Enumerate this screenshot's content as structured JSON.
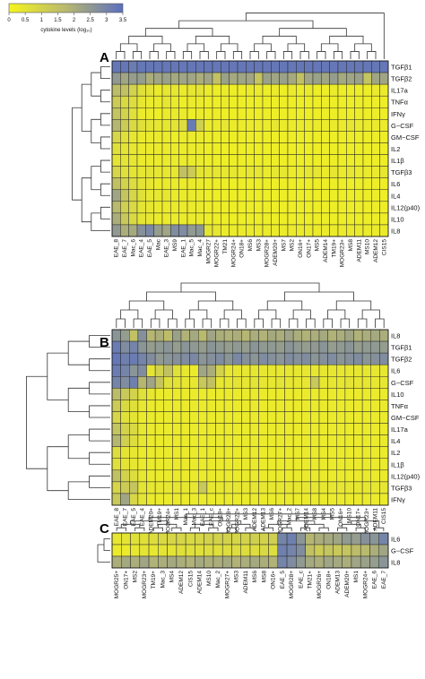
{
  "colorbar": {
    "ticks": [
      "0",
      "0.5",
      "1",
      "1.5",
      "2",
      "2.5",
      "3",
      "3.5"
    ],
    "label": "cytokine levels (log₁₀)",
    "min": 0,
    "max": 3.5,
    "colors": [
      "#f5f51e",
      "#b8b870",
      "#5a6fc0"
    ]
  },
  "chart_data": [
    {
      "type": "heatmap",
      "panel": "A",
      "rows": [
        "TGFβ1",
        "TGFβ2",
        "IL17a",
        "TNFα",
        "IFNγ",
        "G−CSF",
        "GM−CSF",
        "IL2",
        "IL1β",
        "TGFβ3",
        "IL6",
        "IL4",
        "IL12(p40)",
        "IL10",
        "IL8"
      ],
      "columns": [
        "EAE_8",
        "EAE_7",
        "Mac_6",
        "EAE_4",
        "EAE_5",
        "Mac",
        "EAE_3",
        "MS9",
        "EAE_1",
        "Mac_5",
        "Mac_4",
        "MOGR27",
        "MOGR22+",
        "TM21",
        "MOGR24+",
        "ON18+",
        "MS6",
        "MS3",
        "MOGR28+",
        "ADEM20+",
        "MS7",
        "MS2",
        "ON16+",
        "ON17+",
        "MS5",
        "ADEM14",
        "TM19+",
        "MOGR23+",
        "MS8",
        "ADEM11",
        "MS10",
        "ADEM12",
        "CIS15"
      ],
      "values": [
        [
          3.3,
          3.3,
          3.2,
          3.3,
          3.3,
          3.3,
          3.3,
          3.3,
          3.3,
          3.3,
          3.3,
          3.3,
          3.3,
          3.3,
          3.3,
          3.3,
          3.3,
          3.3,
          3.3,
          3.3,
          3.3,
          3.3,
          3.3,
          3.3,
          3.3,
          3.3,
          3.3,
          3.3,
          3.3,
          3.3,
          3.3,
          3.3,
          3.3
        ],
        [
          2.5,
          2.2,
          2.4,
          2.4,
          2.0,
          2.2,
          2.3,
          2.1,
          2.2,
          2.2,
          2.0,
          2.2,
          1.5,
          2.3,
          2.1,
          2.2,
          2.2,
          1.4,
          2.3,
          2.2,
          2.3,
          2.1,
          1.5,
          2.2,
          2.3,
          2.2,
          2.4,
          2.1,
          2.2,
          2.3,
          1.4,
          2.2,
          2.2
        ],
        [
          1.6,
          1.5,
          1.0,
          0.6,
          0.5,
          0.3,
          0.4,
          0.4,
          0.3,
          0.4,
          0.5,
          0.3,
          0.2,
          0.3,
          0.2,
          0.2,
          0.3,
          0.3,
          0.2,
          0.3,
          0.2,
          0.3,
          0.2,
          0.3,
          0.2,
          0.2,
          0.3,
          0.2,
          0.2,
          0.2,
          0.2,
          0.3,
          0.3
        ],
        [
          1.2,
          0.8,
          0.7,
          0.4,
          0.3,
          0.3,
          0.4,
          0.3,
          0.2,
          0.3,
          0.3,
          0.2,
          0.2,
          0.3,
          0.2,
          0.2,
          0.2,
          0.2,
          0.2,
          0.2,
          0.2,
          0.2,
          0.2,
          0.2,
          0.2,
          0.2,
          0.2,
          0.2,
          0.2,
          0.2,
          0.2,
          0.2,
          0.2
        ],
        [
          1.4,
          1.0,
          0.6,
          0.3,
          0.3,
          0.2,
          0.3,
          0.3,
          0.3,
          0.2,
          0.3,
          0.2,
          0.2,
          0.2,
          0.2,
          0.2,
          0.2,
          0.2,
          0.2,
          0.2,
          0.2,
          0.2,
          0.2,
          0.2,
          0.2,
          0.2,
          0.2,
          0.2,
          0.2,
          0.2,
          0.2,
          0.2,
          0.2
        ],
        [
          1.8,
          1.2,
          0.8,
          0.6,
          0.5,
          0.4,
          0.4,
          0.5,
          0.7,
          3.2,
          1.1,
          0.3,
          0.3,
          0.4,
          0.3,
          0.3,
          0.3,
          0.3,
          0.3,
          0.4,
          0.3,
          0.3,
          0.3,
          0.3,
          0.3,
          0.3,
          0.3,
          0.3,
          0.4,
          0.3,
          0.3,
          0.3,
          0.3
        ],
        [
          0.9,
          0.6,
          0.4,
          0.3,
          0.3,
          0.3,
          0.3,
          0.2,
          0.3,
          0.3,
          0.3,
          0.2,
          0.2,
          0.2,
          0.2,
          0.2,
          0.2,
          0.2,
          0.2,
          0.2,
          0.2,
          0.2,
          0.2,
          0.2,
          0.2,
          0.2,
          0.2,
          0.2,
          0.2,
          0.2,
          0.2,
          0.2,
          0.2
        ],
        [
          0.6,
          0.5,
          0.4,
          0.3,
          0.3,
          0.3,
          0.3,
          0.3,
          0.3,
          0.3,
          0.3,
          0.2,
          0.2,
          0.2,
          0.2,
          0.2,
          0.2,
          0.2,
          0.2,
          0.2,
          0.2,
          0.2,
          0.2,
          0.2,
          0.2,
          0.2,
          0.2,
          0.2,
          0.2,
          0.2,
          0.2,
          0.2,
          0.2
        ],
        [
          0.5,
          0.5,
          0.4,
          0.3,
          0.3,
          0.3,
          0.3,
          0.3,
          0.3,
          0.3,
          0.3,
          0.2,
          0.2,
          0.2,
          0.2,
          0.2,
          0.2,
          0.2,
          0.2,
          0.2,
          0.2,
          0.2,
          0.2,
          0.2,
          0.2,
          0.2,
          0.2,
          0.2,
          0.2,
          0.2,
          0.2,
          0.2,
          0.2
        ],
        [
          0.9,
          0.6,
          0.5,
          0.4,
          0.5,
          0.4,
          0.4,
          0.4,
          1.5,
          1.2,
          0.5,
          0.4,
          0.4,
          0.4,
          0.4,
          0.3,
          0.4,
          0.4,
          0.3,
          0.4,
          0.4,
          0.3,
          0.3,
          0.4,
          0.4,
          0.3,
          0.4,
          0.3,
          0.4,
          0.3,
          0.3,
          0.3,
          0.4
        ],
        [
          1.5,
          1.0,
          0.7,
          0.5,
          0.4,
          0.3,
          0.3,
          0.3,
          0.3,
          0.3,
          0.3,
          0.2,
          0.2,
          0.2,
          0.2,
          0.2,
          0.2,
          0.2,
          0.2,
          0.2,
          0.2,
          0.2,
          0.2,
          0.2,
          0.2,
          0.2,
          0.2,
          0.2,
          0.2,
          0.2,
          0.2,
          0.2,
          0.2
        ],
        [
          2.2,
          1.4,
          0.9,
          0.6,
          0.4,
          0.4,
          0.4,
          0.3,
          0.3,
          0.3,
          0.3,
          0.2,
          0.2,
          0.2,
          0.2,
          0.2,
          0.2,
          0.2,
          0.2,
          0.2,
          0.2,
          0.2,
          0.2,
          0.2,
          0.2,
          0.2,
          0.2,
          0.2,
          0.2,
          0.2,
          0.2,
          0.2,
          0.2
        ],
        [
          1.7,
          1.1,
          0.8,
          0.5,
          0.4,
          0.3,
          0.3,
          0.3,
          0.3,
          0.3,
          0.3,
          0.2,
          0.2,
          0.2,
          0.2,
          0.2,
          0.2,
          0.2,
          0.2,
          0.2,
          0.2,
          0.2,
          0.2,
          0.2,
          0.2,
          0.2,
          0.2,
          0.2,
          0.2,
          0.2,
          0.2,
          0.2,
          0.2
        ],
        [
          2.0,
          1.3,
          0.8,
          0.5,
          0.4,
          0.3,
          0.3,
          0.3,
          0.3,
          0.3,
          0.3,
          0.2,
          0.2,
          0.2,
          0.2,
          0.2,
          0.2,
          0.2,
          0.2,
          0.2,
          0.2,
          0.2,
          0.2,
          0.2,
          0.2,
          0.2,
          0.2,
          0.2,
          0.2,
          0.2,
          0.2,
          0.2,
          0.2
        ],
        [
          2.5,
          2.0,
          2.1,
          2.7,
          2.9,
          2.4,
          2.2,
          2.8,
          2.8,
          2.5,
          2.6,
          0.5,
          0.4,
          0.3,
          0.3,
          0.3,
          0.3,
          0.3,
          0.3,
          0.3,
          0.3,
          0.3,
          0.3,
          0.3,
          0.3,
          0.3,
          0.3,
          0.3,
          0.3,
          0.3,
          0.3,
          0.3,
          0.3
        ]
      ]
    },
    {
      "type": "heatmap",
      "panel": "B",
      "rows": [
        "IL8",
        "TGFβ1",
        "TGFβ2",
        "IL6",
        "G−CSF",
        "IL10",
        "TNFα",
        "GM−CSF",
        "IL17a",
        "IL4",
        "IL2",
        "IL1β",
        "IL12(p40)",
        "TGFβ3",
        "IFNγ"
      ],
      "columns": [
        "EAE_8",
        "EAE_7",
        "EAE_5",
        "EAE_4",
        "ADEM20+",
        "TM19+",
        "MOGR24+",
        "MS1",
        "Mac_1",
        "Mac_3",
        "EAE_1",
        "EAE_c",
        "ON18+",
        "MOGR28+",
        "MOGR22+",
        "MS3",
        "ADEM12",
        "ADEM13",
        "MS6",
        "MOGR27+",
        "Mac_2",
        "MS7",
        "ADEM14",
        "MS8",
        "MS4",
        "MS5",
        "ON16+",
        "MS10",
        "ON17+",
        "MOGR23+",
        "ADEM11",
        "CIS15"
      ],
      "values": [
        [
          2.6,
          2.4,
          1.5,
          2.7,
          1.8,
          2.0,
          1.6,
          2.3,
          1.9,
          2.1,
          1.7,
          2.2,
          2.0,
          1.9,
          2.0,
          1.8,
          2.0,
          1.9,
          2.1,
          2.0,
          2.2,
          2.0,
          1.9,
          2.0,
          2.1,
          1.9,
          2.0,
          2.2,
          1.9,
          2.0,
          2.1,
          2.0
        ],
        [
          3.2,
          2.8,
          3.0,
          2.6,
          2.4,
          2.5,
          2.6,
          2.4,
          2.6,
          2.5,
          2.4,
          2.6,
          2.5,
          2.4,
          2.5,
          2.4,
          2.6,
          2.5,
          2.5,
          2.4,
          2.6,
          2.5,
          2.4,
          2.5,
          2.6,
          2.4,
          2.5,
          2.6,
          2.4,
          2.5,
          2.5,
          2.4
        ],
        [
          3.3,
          3.1,
          3.2,
          3.0,
          2.8,
          2.5,
          2.6,
          2.7,
          2.8,
          2.9,
          2.6,
          2.7,
          2.8,
          2.6,
          2.9,
          2.7,
          2.6,
          2.8,
          2.7,
          2.6,
          2.8,
          2.7,
          2.8,
          2.6,
          2.7,
          2.8,
          2.6,
          2.7,
          2.8,
          2.6,
          2.7,
          2.8
        ],
        [
          3.2,
          3.0,
          2.6,
          2.8,
          0.5,
          1.0,
          1.5,
          0.6,
          0.4,
          0.3,
          2.2,
          2.0,
          1.0,
          0.4,
          0.4,
          0.4,
          0.4,
          0.4,
          0.4,
          0.4,
          0.4,
          0.4,
          0.4,
          0.4,
          0.4,
          0.4,
          0.4,
          0.4,
          0.4,
          0.4,
          0.4,
          0.4
        ],
        [
          3.0,
          2.8,
          3.1,
          1.8,
          2.2,
          1.4,
          0.6,
          0.5,
          0.4,
          0.4,
          1.3,
          1.5,
          0.4,
          0.4,
          0.5,
          0.4,
          0.5,
          0.4,
          0.4,
          0.5,
          0.4,
          0.4,
          0.4,
          1.3,
          0.4,
          0.4,
          0.4,
          0.5,
          0.4,
          0.4,
          0.4,
          0.4
        ],
        [
          1.6,
          1.3,
          1.0,
          0.6,
          0.4,
          0.3,
          0.3,
          0.3,
          0.3,
          0.3,
          0.3,
          0.3,
          0.3,
          0.3,
          0.3,
          0.3,
          0.3,
          0.3,
          0.3,
          0.3,
          0.3,
          0.3,
          0.3,
          0.3,
          0.3,
          0.3,
          0.3,
          0.3,
          0.3,
          0.3,
          0.3,
          0.3
        ],
        [
          1.2,
          0.8,
          0.6,
          0.4,
          0.3,
          0.3,
          0.3,
          0.3,
          0.3,
          0.3,
          0.3,
          0.3,
          0.3,
          0.3,
          0.3,
          0.3,
          0.3,
          0.3,
          0.3,
          0.3,
          0.3,
          0.3,
          0.3,
          0.3,
          0.3,
          0.3,
          0.3,
          0.3,
          0.3,
          0.3,
          0.3,
          0.3
        ],
        [
          0.9,
          0.6,
          0.5,
          0.3,
          0.3,
          0.3,
          0.3,
          0.3,
          0.3,
          0.3,
          0.3,
          0.3,
          0.3,
          0.3,
          0.3,
          0.3,
          0.3,
          0.3,
          0.3,
          0.3,
          0.3,
          0.3,
          0.3,
          0.3,
          0.3,
          0.3,
          0.3,
          0.3,
          0.3,
          0.3,
          0.3,
          0.3
        ],
        [
          1.4,
          1.0,
          0.8,
          0.4,
          0.3,
          0.3,
          0.3,
          0.3,
          0.3,
          0.3,
          0.3,
          0.3,
          0.3,
          0.3,
          0.3,
          0.3,
          0.3,
          0.3,
          0.3,
          0.3,
          0.3,
          0.3,
          0.3,
          0.3,
          0.3,
          0.3,
          0.3,
          0.3,
          0.3,
          0.3,
          0.3,
          0.3
        ],
        [
          1.8,
          1.1,
          0.7,
          0.4,
          0.3,
          0.3,
          0.3,
          0.3,
          0.3,
          0.3,
          0.3,
          0.3,
          0.3,
          0.3,
          0.3,
          0.3,
          0.3,
          0.3,
          0.3,
          0.3,
          0.3,
          0.3,
          0.3,
          0.3,
          0.3,
          0.3,
          0.3,
          0.3,
          0.3,
          0.3,
          0.3,
          0.3
        ],
        [
          0.7,
          0.5,
          0.4,
          0.3,
          0.3,
          0.3,
          0.3,
          0.3,
          0.3,
          0.3,
          0.3,
          0.3,
          0.3,
          0.3,
          0.3,
          0.3,
          0.3,
          0.3,
          0.3,
          0.3,
          0.3,
          0.3,
          0.3,
          0.3,
          0.3,
          0.3,
          0.3,
          0.3,
          0.3,
          0.3,
          0.3,
          0.3
        ],
        [
          0.6,
          0.5,
          0.4,
          0.3,
          0.3,
          0.3,
          0.3,
          0.3,
          0.3,
          0.3,
          0.3,
          0.3,
          0.3,
          0.3,
          0.3,
          0.3,
          0.3,
          0.3,
          0.3,
          0.3,
          0.3,
          0.3,
          0.3,
          0.3,
          0.3,
          0.3,
          0.3,
          0.3,
          0.3,
          0.3,
          0.3,
          0.3
        ],
        [
          1.5,
          1.0,
          0.7,
          0.4,
          0.3,
          0.3,
          0.3,
          0.3,
          0.3,
          0.3,
          0.3,
          0.3,
          0.3,
          0.3,
          0.3,
          0.3,
          0.3,
          0.3,
          0.3,
          0.3,
          0.3,
          0.3,
          0.3,
          0.3,
          0.3,
          0.3,
          0.3,
          0.3,
          0.3,
          0.3,
          0.3,
          0.3
        ],
        [
          0.9,
          1.2,
          1.4,
          0.5,
          0.4,
          0.4,
          0.4,
          0.4,
          0.4,
          0.4,
          1.3,
          0.4,
          0.4,
          0.4,
          0.4,
          0.4,
          0.4,
          0.4,
          0.4,
          0.4,
          0.4,
          0.4,
          0.4,
          0.4,
          0.4,
          0.4,
          0.4,
          0.4,
          0.4,
          0.4,
          0.4,
          0.4
        ],
        [
          1.3,
          2.2,
          0.9,
          0.5,
          0.3,
          0.3,
          0.3,
          0.3,
          0.3,
          0.3,
          0.3,
          0.3,
          0.3,
          0.3,
          0.3,
          0.3,
          0.3,
          0.3,
          0.3,
          0.3,
          0.3,
          0.3,
          0.3,
          0.3,
          0.3,
          0.3,
          0.3,
          0.3,
          0.3,
          0.3,
          0.3,
          0.3
        ]
      ]
    },
    {
      "type": "heatmap",
      "panel": "C",
      "rows": [
        "IL6",
        "G−CSF",
        "IL8"
      ],
      "columns": [
        "MOGR25+",
        "ON17+",
        "MS2",
        "MOGR23+",
        "TM19+",
        "Mac_3",
        "MS4",
        "ADEM12",
        "CIS15",
        "ADEM14",
        "MS10",
        "Mac_2",
        "MOGR27+",
        "MS3",
        "ADEM11",
        "MS6",
        "MS8",
        "ON16+",
        "EAE_5",
        "MOGR28+",
        "EAE_c",
        "TM21+",
        "MOGR26+",
        "ON18+",
        "ADEM13",
        "ADEM20+",
        "MS1",
        "MOGR24+",
        "EAE_6",
        "EAE_7"
      ],
      "values": [
        [
          0.4,
          0.5,
          0.6,
          0.6,
          0.7,
          0.8,
          0.9,
          0.9,
          0.8,
          0.9,
          1.0,
          1.0,
          1.0,
          0.9,
          1.0,
          1.1,
          1.0,
          1.1,
          3.0,
          3.1,
          2.6,
          1.8,
          2.0,
          2.1,
          2.2,
          2.5,
          2.4,
          2.7,
          2.6,
          3.0
        ],
        [
          0.3,
          0.3,
          0.4,
          0.5,
          0.4,
          0.5,
          0.5,
          0.6,
          0.6,
          0.6,
          0.7,
          0.6,
          0.7,
          0.7,
          0.7,
          0.7,
          0.8,
          0.7,
          3.1,
          3.0,
          2.8,
          1.5,
          1.2,
          1.4,
          1.3,
          1.4,
          1.6,
          1.7,
          2.0,
          2.2
        ],
        [
          2.0,
          2.1,
          2.0,
          2.2,
          1.9,
          2.0,
          2.1,
          2.0,
          1.9,
          2.1,
          2.0,
          2.0,
          2.1,
          1.9,
          2.0,
          2.1,
          2.0,
          1.9,
          3.0,
          2.8,
          2.5,
          2.1,
          2.0,
          2.2,
          2.1,
          2.0,
          2.2,
          2.3,
          2.4,
          2.6
        ]
      ]
    }
  ]
}
